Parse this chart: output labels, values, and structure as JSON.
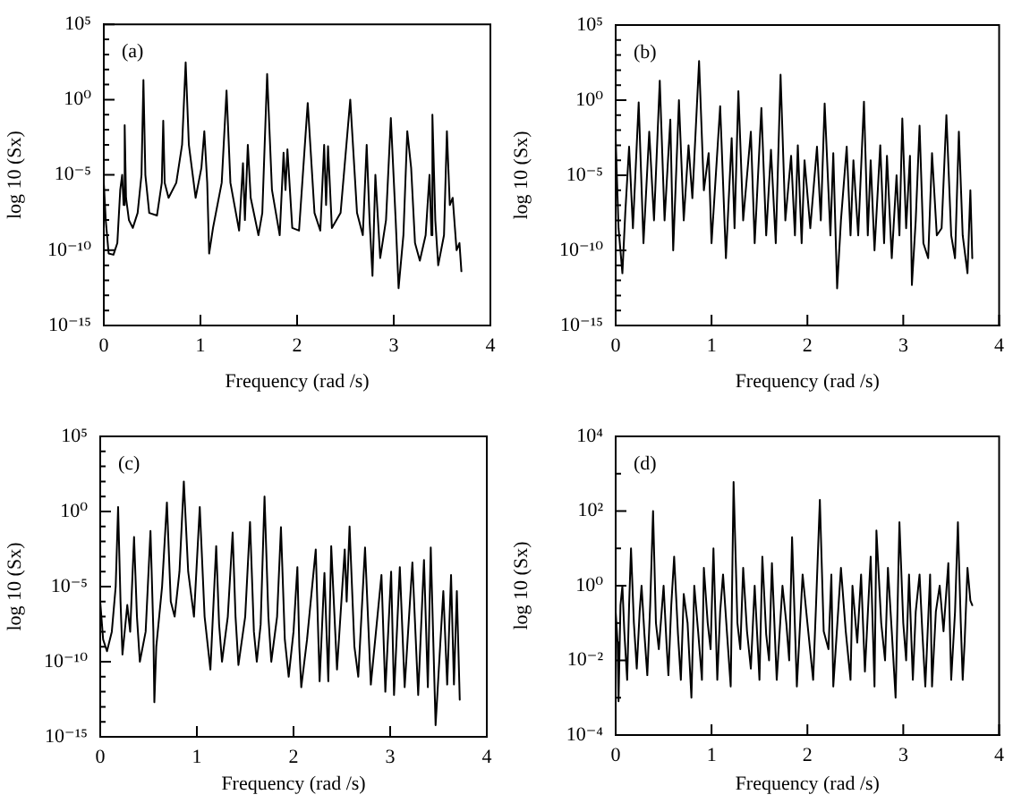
{
  "chart_data": [
    {
      "type": "line",
      "annotations": [
        "(a)"
      ],
      "xlabel": "Frequency (rad /s)",
      "ylabel": "log 10 (Sx)",
      "color": "#000000",
      "line_style": "solid",
      "log": true,
      "xlim": [
        0,
        4
      ],
      "xticks": [
        0,
        1,
        2,
        3,
        4
      ],
      "ylim": [
        1e-15,
        100000.0
      ],
      "yticks": [
        {
          "value": 1e-15,
          "label": "10⁻¹⁵"
        },
        {
          "value": 1e-14,
          "label": null
        },
        {
          "value": 1e-13,
          "label": null
        },
        {
          "value": 1e-12,
          "label": null
        },
        {
          "value": 1e-11,
          "label": null
        },
        {
          "value": 1e-10,
          "label": "10⁻¹⁰"
        },
        {
          "value": 1e-09,
          "label": null
        },
        {
          "value": 1e-08,
          "label": null
        },
        {
          "value": 1e-07,
          "label": null
        },
        {
          "value": 1e-06,
          "label": null
        },
        {
          "value": 1e-05,
          "label": "10⁻⁵"
        },
        {
          "value": 0.0001,
          "label": null
        },
        {
          "value": 0.001,
          "label": null
        },
        {
          "value": 0.01,
          "label": null
        },
        {
          "value": 0.1,
          "label": null
        },
        {
          "value": 1,
          "label": "10⁰"
        },
        {
          "value": 10,
          "label": null
        },
        {
          "value": 100,
          "label": null
        },
        {
          "value": 1000,
          "label": null
        },
        {
          "value": 10000,
          "label": null
        },
        {
          "value": 100000,
          "label": "10⁵"
        }
      ],
      "x": [
        0,
        0.02,
        0.05,
        0.1,
        0.14,
        0.17,
        0.19,
        0.205,
        0.216,
        0.23,
        0.26,
        0.3,
        0.35,
        0.39,
        0.41,
        0.43,
        0.47,
        0.55,
        0.6,
        0.615,
        0.63,
        0.67,
        0.75,
        0.81,
        0.847,
        0.88,
        0.95,
        1.01,
        1.04,
        1.07,
        1.09,
        1.13,
        1.22,
        1.27,
        1.31,
        1.4,
        1.44,
        1.46,
        1.49,
        1.52,
        1.6,
        1.64,
        1.69,
        1.74,
        1.82,
        1.86,
        1.88,
        1.9,
        1.95,
        2.02,
        2.11,
        2.18,
        2.24,
        2.28,
        2.3,
        2.32,
        2.36,
        2.45,
        2.55,
        2.62,
        2.68,
        2.72,
        2.75,
        2.78,
        2.81,
        2.86,
        2.92,
        2.97,
        3.02,
        3.05,
        3.1,
        3.14,
        3.18,
        3.22,
        3.27,
        3.33,
        3.37,
        3.39,
        3.4,
        3.43,
        3.46,
        3.52,
        3.55,
        3.58,
        3.61,
        3.65,
        3.68,
        3.7
      ],
      "values": [
        3e-06,
        1e-08,
        6e-11,
        5e-11,
        3e-10,
        1e-06,
        1e-05,
        1e-07,
        0.02,
        3e-07,
        1e-08,
        3e-09,
        3e-08,
        1e-05,
        20,
        1e-05,
        3e-08,
        2e-08,
        3e-06,
        0.04,
        3e-06,
        3e-07,
        3e-06,
        0.001,
        300,
        0.001,
        3e-07,
        3e-05,
        0.008,
        3e-06,
        6e-11,
        3e-09,
        3e-06,
        4,
        3e-06,
        2e-09,
        6e-05,
        1e-08,
        0.001,
        3e-07,
        1e-09,
        3e-08,
        50,
        1e-06,
        1e-09,
        0.0003,
        1e-06,
        0.0005,
        3e-09,
        2e-09,
        0.6,
        3e-08,
        2e-09,
        0.001,
        1e-07,
        0.0008,
        3e-09,
        3e-08,
        1,
        3e-08,
        1e-09,
        0.001,
        1e-08,
        2e-12,
        1e-05,
        3e-11,
        1e-08,
        0.06,
        1e-08,
        3e-13,
        1e-09,
        0.008,
        3e-05,
        3e-10,
        2e-11,
        1e-09,
        1e-05,
        1e-09,
        0.1,
        1e-08,
        1e-11,
        1e-09,
        0.008,
        1e-07,
        3e-07,
        1e-10,
        3e-10,
        4e-12
      ]
    },
    {
      "type": "line",
      "annotations": [
        "(b)"
      ],
      "xlabel": "Frequency (rad /s)",
      "ylabel": "log 10 (Sx)",
      "color": "#000000",
      "line_style": "solid",
      "log": true,
      "xlim": [
        0,
        4
      ],
      "xticks": [
        0,
        1,
        2,
        3,
        4
      ],
      "ylim": [
        1e-15,
        100000.0
      ],
      "yticks": [
        {
          "value": 1e-15,
          "label": "10⁻¹⁵"
        },
        {
          "value": 1e-14,
          "label": null
        },
        {
          "value": 1e-13,
          "label": null
        },
        {
          "value": 1e-12,
          "label": null
        },
        {
          "value": 1e-11,
          "label": null
        },
        {
          "value": 1e-10,
          "label": "10⁻¹⁰"
        },
        {
          "value": 1e-09,
          "label": null
        },
        {
          "value": 1e-08,
          "label": null
        },
        {
          "value": 1e-07,
          "label": null
        },
        {
          "value": 1e-06,
          "label": null
        },
        {
          "value": 1e-05,
          "label": "10⁻⁵"
        },
        {
          "value": 0.0001,
          "label": null
        },
        {
          "value": 0.001,
          "label": null
        },
        {
          "value": 0.01,
          "label": null
        },
        {
          "value": 0.1,
          "label": null
        },
        {
          "value": 1,
          "label": "10⁰"
        },
        {
          "value": 10,
          "label": null
        },
        {
          "value": 100,
          "label": null
        },
        {
          "value": 1000,
          "label": null
        },
        {
          "value": 10000,
          "label": null
        },
        {
          "value": 100000,
          "label": "10⁵"
        }
      ],
      "x": [
        0,
        0.03,
        0.07,
        0.1,
        0.14,
        0.18,
        0.24,
        0.29,
        0.35,
        0.4,
        0.46,
        0.51,
        0.57,
        0.6,
        0.66,
        0.71,
        0.76,
        0.8,
        0.87,
        0.92,
        0.97,
        1.0,
        1.09,
        1.15,
        1.21,
        1.24,
        1.28,
        1.33,
        1.41,
        1.45,
        1.52,
        1.57,
        1.62,
        1.67,
        1.72,
        1.77,
        1.83,
        1.87,
        1.9,
        1.94,
        1.97,
        2.03,
        2.1,
        2.14,
        2.18,
        2.24,
        2.27,
        2.31,
        2.35,
        2.41,
        2.45,
        2.48,
        2.53,
        2.59,
        2.63,
        2.66,
        2.7,
        2.76,
        2.8,
        2.83,
        2.88,
        2.93,
        2.96,
        2.99,
        3.03,
        3.07,
        3.09,
        3.13,
        3.17,
        3.21,
        3.26,
        3.3,
        3.35,
        3.4,
        3.45,
        3.5,
        3.54,
        3.58,
        3.62,
        3.67,
        3.7,
        3.72
      ],
      "values": [
        0.003,
        3e-09,
        3e-12,
        3e-08,
        0.0008,
        3e-09,
        0.7,
        3e-10,
        0.008,
        1e-08,
        20,
        1e-08,
        0.05,
        1e-10,
        1,
        1e-08,
        0.001,
        3e-07,
        400,
        1e-06,
        0.0003,
        3e-10,
        0.4,
        3e-11,
        0.003,
        3e-09,
        4,
        1e-08,
        0.008,
        3e-10,
        0.3,
        1e-09,
        0.0005,
        3e-10,
        50,
        1e-08,
        0.0002,
        1e-09,
        0.001,
        3e-10,
        0.0001,
        3e-09,
        0.0008,
        1e-08,
        0.6,
        1e-09,
        0.0003,
        3e-13,
        1e-08,
        0.0008,
        1e-09,
        0.0001,
        1e-09,
        0.8,
        1e-09,
        0.0001,
        1e-10,
        0.001,
        3e-10,
        0.0002,
        3e-11,
        1e-05,
        1e-09,
        0.06,
        3e-09,
        0.0002,
        5e-13,
        1e-08,
        0.02,
        3e-10,
        3e-11,
        0.0003,
        1e-09,
        3e-09,
        0.1,
        1e-09,
        3e-11,
        0.008,
        1e-09,
        3e-12,
        1e-06,
        3e-11
      ]
    },
    {
      "type": "line",
      "annotations": [
        "(c)"
      ],
      "xlabel": "Frequency (rad /s)",
      "ylabel": "log 10 (Sx)",
      "color": "#000000",
      "line_style": "solid",
      "log": true,
      "xlim": [
        0,
        4
      ],
      "xticks": [
        0,
        1,
        2,
        3,
        4
      ],
      "ylim": [
        1e-15,
        100000.0
      ],
      "yticks": [
        {
          "value": 1e-15,
          "label": "10⁻¹⁵"
        },
        {
          "value": 1e-14,
          "label": null
        },
        {
          "value": 1e-13,
          "label": null
        },
        {
          "value": 1e-12,
          "label": null
        },
        {
          "value": 1e-11,
          "label": null
        },
        {
          "value": 1e-10,
          "label": "10⁻¹⁰"
        },
        {
          "value": 1e-09,
          "label": null
        },
        {
          "value": 1e-08,
          "label": null
        },
        {
          "value": 1e-07,
          "label": null
        },
        {
          "value": 1e-06,
          "label": null
        },
        {
          "value": 1e-05,
          "label": "10⁻⁵"
        },
        {
          "value": 0.0001,
          "label": null
        },
        {
          "value": 0.001,
          "label": null
        },
        {
          "value": 0.01,
          "label": null
        },
        {
          "value": 0.1,
          "label": null
        },
        {
          "value": 1,
          "label": "10⁰"
        },
        {
          "value": 10,
          "label": null
        },
        {
          "value": 100,
          "label": null
        },
        {
          "value": 1000,
          "label": null
        },
        {
          "value": 10000,
          "label": null
        },
        {
          "value": 100000,
          "label": "10⁵"
        }
      ],
      "x": [
        0,
        0.03,
        0.07,
        0.12,
        0.16,
        0.185,
        0.21,
        0.23,
        0.28,
        0.31,
        0.35,
        0.38,
        0.41,
        0.47,
        0.52,
        0.55,
        0.56,
        0.58,
        0.64,
        0.69,
        0.73,
        0.77,
        0.82,
        0.865,
        0.91,
        0.97,
        1.03,
        1.08,
        1.14,
        1.2,
        1.23,
        1.26,
        1.32,
        1.37,
        1.4,
        1.43,
        1.5,
        1.55,
        1.59,
        1.62,
        1.66,
        1.7,
        1.74,
        1.77,
        1.83,
        1.87,
        1.91,
        1.95,
        2.0,
        2.04,
        2.06,
        2.08,
        2.14,
        2.23,
        2.27,
        2.32,
        2.36,
        2.39,
        2.45,
        2.53,
        2.55,
        2.58,
        2.63,
        2.67,
        2.74,
        2.8,
        2.91,
        2.95,
        3.01,
        3.04,
        3.1,
        3.15,
        3.23,
        3.29,
        3.35,
        3.39,
        3.42,
        3.47,
        3.55,
        3.59,
        3.63,
        3.66,
        3.69,
        3.72
      ],
      "values": [
        1e-06,
        3e-09,
        5e-10,
        1e-08,
        1e-05,
        2,
        1e-06,
        3e-10,
        6e-07,
        1e-08,
        0.02,
        1e-07,
        1e-10,
        1e-08,
        0.05,
        1e-08,
        2e-13,
        1e-09,
        1e-05,
        4,
        1e-06,
        1e-07,
        0.0001,
        100,
        0.0001,
        1e-07,
        2,
        1e-07,
        3e-11,
        0.005,
        3e-08,
        1e-10,
        1e-07,
        0.04,
        1e-07,
        6e-11,
        1e-07,
        0.2,
        1e-08,
        1e-10,
        3e-08,
        10,
        1e-07,
        1e-10,
        1e-07,
        0.09,
        3e-09,
        1e-11,
        1e-08,
        0.0002,
        1e-09,
        2e-12,
        3e-09,
        0.003,
        5e-12,
        8e-05,
        5e-12,
        0.005,
        3e-11,
        0.003,
        1e-06,
        0.1,
        1e-09,
        1e-11,
        0.004,
        3e-12,
        6e-05,
        1e-12,
        0.0001,
        6e-13,
        0.0002,
        2e-12,
        0.0004,
        6e-13,
        0.0006,
        2e-12,
        0.004,
        6e-15,
        5e-06,
        3e-12,
        6e-05,
        3e-12,
        5e-06,
        3e-13
      ]
    },
    {
      "type": "line",
      "annotations": [
        "(d)"
      ],
      "xlabel": "Frequency (rad /s)",
      "ylabel": "log 10 (Sx)",
      "color": "#000000",
      "line_style": "solid",
      "log": true,
      "xlim": [
        0,
        4
      ],
      "xticks": [
        0,
        1,
        2,
        3,
        4
      ],
      "ylim": [
        0.0001,
        10000.0
      ],
      "yticks": [
        {
          "value": 0.0001,
          "label": "10⁻⁴"
        },
        {
          "value": 0.001,
          "label": null
        },
        {
          "value": 0.01,
          "label": "10⁻²"
        },
        {
          "value": 0.1,
          "label": null
        },
        {
          "value": 1,
          "label": "10⁰"
        },
        {
          "value": 10,
          "label": null
        },
        {
          "value": 100,
          "label": "10²"
        },
        {
          "value": 1000,
          "label": null
        },
        {
          "value": 10000,
          "label": "10⁴"
        }
      ],
      "x": [
        0,
        0.02,
        0.03,
        0.05,
        0.07,
        0.09,
        0.12,
        0.14,
        0.16,
        0.19,
        0.22,
        0.25,
        0.27,
        0.3,
        0.33,
        0.36,
        0.39,
        0.42,
        0.45,
        0.5,
        0.53,
        0.55,
        0.58,
        0.61,
        0.65,
        0.68,
        0.71,
        0.75,
        0.79,
        0.82,
        0.86,
        0.9,
        0.92,
        0.96,
        0.99,
        1.02,
        1.06,
        1.09,
        1.12,
        1.16,
        1.2,
        1.23,
        1.27,
        1.3,
        1.33,
        1.37,
        1.41,
        1.45,
        1.5,
        1.53,
        1.57,
        1.6,
        1.63,
        1.68,
        1.74,
        1.78,
        1.81,
        1.84,
        1.89,
        1.95,
        2.0,
        2.06,
        2.09,
        2.13,
        2.17,
        2.22,
        2.25,
        2.27,
        2.35,
        2.4,
        2.45,
        2.47,
        2.52,
        2.56,
        2.6,
        2.66,
        2.7,
        2.72,
        2.77,
        2.81,
        2.84,
        2.88,
        2.92,
        2.96,
        3.0,
        3.03,
        3.06,
        3.1,
        3.13,
        3.17,
        3.2,
        3.23,
        3.28,
        3.3,
        3.34,
        3.38,
        3.42,
        3.47,
        3.5,
        3.54,
        3.57,
        3.6,
        3.62,
        3.64,
        3.67,
        3.7,
        3.72
      ],
      "values": [
        0.2,
        0.03,
        0.0008,
        0.3,
        1,
        0.06,
        0.003,
        0.3,
        10,
        0.1,
        0.006,
        0.2,
        1,
        0.05,
        0.004,
        0.3,
        100,
        0.1,
        0.02,
        1,
        0.03,
        0.004,
        0.3,
        6,
        0.05,
        0.003,
        0.6,
        0.1,
        0.001,
        1,
        0.06,
        0.003,
        3,
        0.1,
        0.02,
        10,
        0.003,
        0.2,
        2,
        0.06,
        0.002,
        600,
        0.1,
        0.02,
        3,
        0.06,
        0.006,
        1,
        0.003,
        6,
        0.05,
        0.01,
        4,
        0.003,
        1,
        0.1,
        0.01,
        20,
        0.002,
        2,
        0.1,
        0.003,
        0.3,
        200,
        0.06,
        0.02,
        2,
        0.002,
        3,
        0.06,
        0.003,
        1,
        0.03,
        2,
        0.005,
        6,
        0.002,
        30,
        0.1,
        0.01,
        3,
        0.06,
        0.001,
        50,
        0.1,
        0.01,
        2,
        0.003,
        0.2,
        2,
        0.05,
        0.002,
        2,
        0.002,
        0.2,
        1,
        0.06,
        4,
        0.003,
        0.2,
        50,
        0.1,
        0.003,
        0.03,
        3,
        0.4,
        0.3
      ]
    }
  ]
}
